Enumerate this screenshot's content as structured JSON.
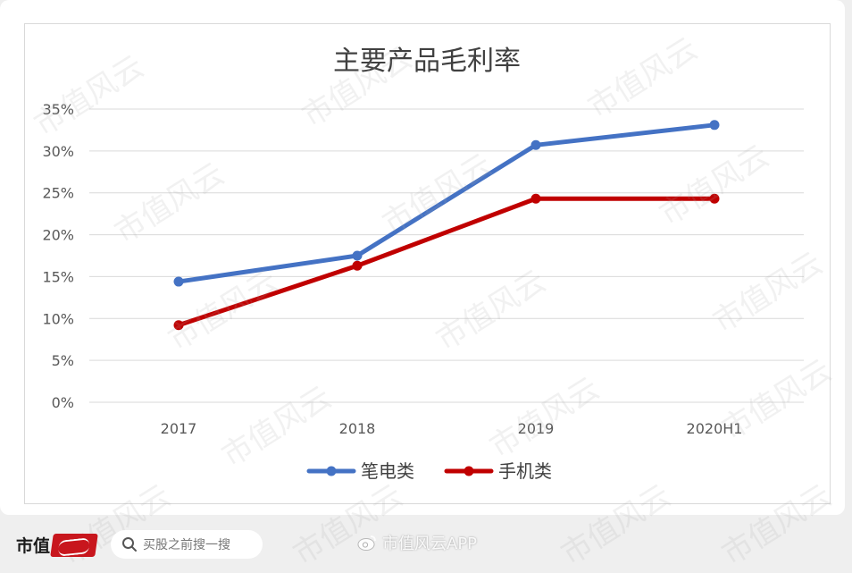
{
  "chart_data": {
    "type": "line",
    "title": "主要产品毛利率",
    "categories": [
      "2017",
      "2018",
      "2019",
      "2020H1"
    ],
    "y_ticks": [
      "0%",
      "5%",
      "10%",
      "15%",
      "20%",
      "25%",
      "30%",
      "35%"
    ],
    "ylim": [
      0,
      35
    ],
    "grid": true,
    "legend_position": "bottom",
    "series": [
      {
        "name": "笔电类",
        "color": "#4472c4",
        "values": [
          14.4,
          17.5,
          30.7,
          33.1
        ]
      },
      {
        "name": "手机类",
        "color": "#c00000",
        "values": [
          9.2,
          16.3,
          24.3,
          24.3
        ]
      }
    ]
  },
  "watermark": {
    "text": "市值风云"
  },
  "footer": {
    "brand": "市值",
    "brand_seal_icon": "seal-logo-icon",
    "search": {
      "placeholder": "买股之前搜一搜",
      "icon": "search-icon"
    },
    "weibo": {
      "text": "市值风云APP",
      "icon": "weibo-icon"
    }
  }
}
